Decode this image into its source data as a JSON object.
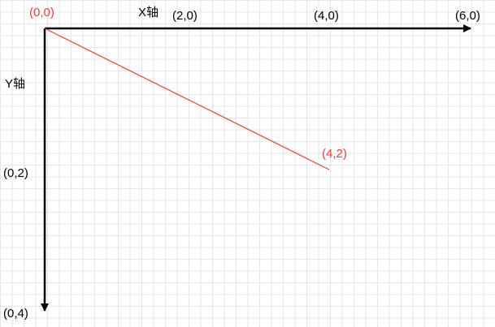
{
  "colors": {
    "axis": "#000000",
    "highlight": "#e8413a",
    "grid": "#e6e6e6"
  },
  "axes": {
    "x_label": "X轴",
    "y_label": "Y轴"
  },
  "points": {
    "origin": "(0,0)",
    "end": "(4,2)"
  },
  "x_ticks": [
    "(2,0)",
    "(4,0)",
    "(6,0)"
  ],
  "y_ticks": [
    "(0,2)",
    "(0,4)"
  ],
  "line_segment": {
    "from": [
      0,
      0
    ],
    "to": [
      4,
      2
    ]
  }
}
